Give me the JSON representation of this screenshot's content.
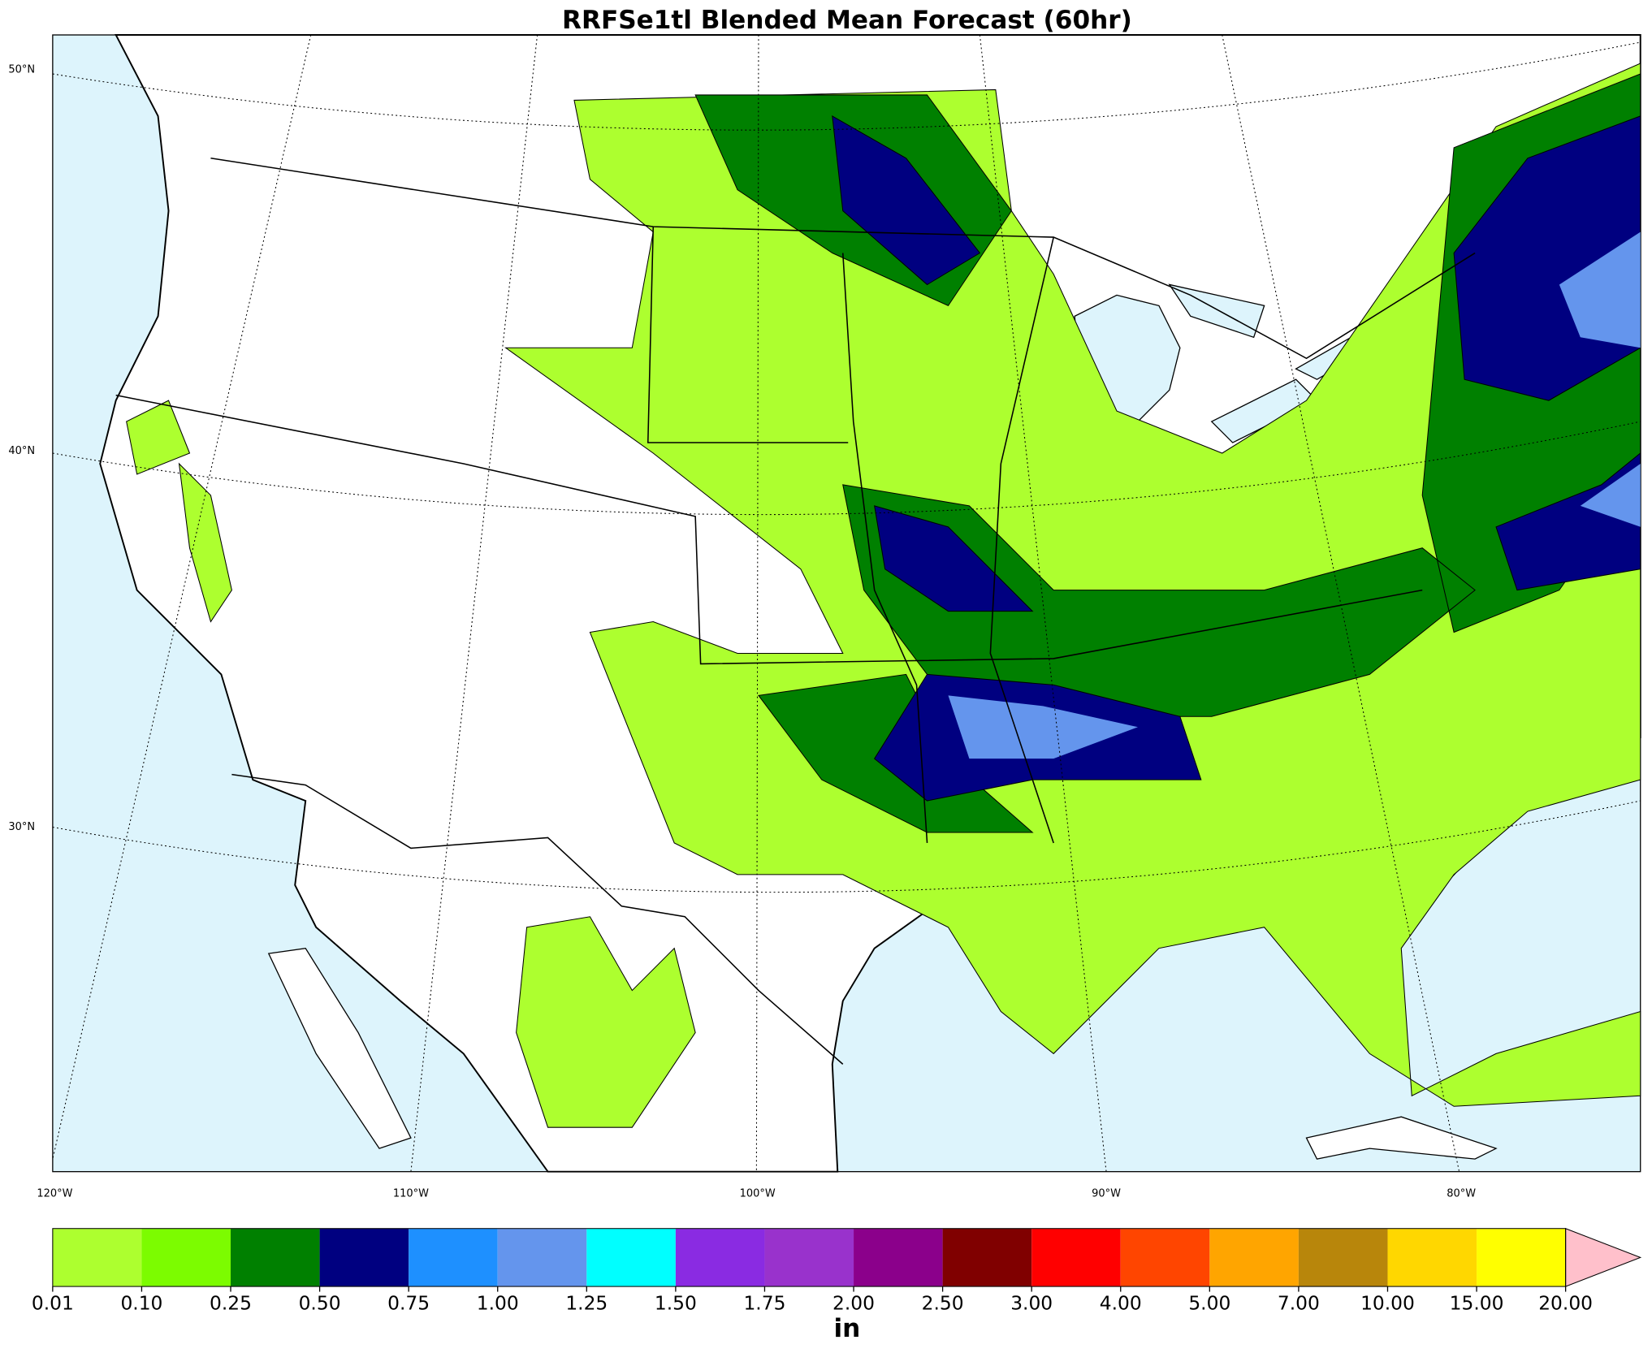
{
  "title": "RRFSe1tl Blended Mean Forecast (60hr)",
  "map": {
    "latitude_labels": [
      "50°N",
      "40°N",
      "30°N"
    ],
    "longitude_labels": [
      "120°W",
      "110°W",
      "100°W",
      "90°W",
      "80°W"
    ]
  },
  "colorbar": {
    "unit": "in",
    "levels": [
      {
        "value": 0.01,
        "label": "0.01"
      },
      {
        "value": 0.1,
        "label": "0.10"
      },
      {
        "value": 0.25,
        "label": "0.25"
      },
      {
        "value": 0.5,
        "label": "0.50"
      },
      {
        "value": 0.75,
        "label": "0.75"
      },
      {
        "value": 1,
        "label": "1.00"
      },
      {
        "value": 1.25,
        "label": "1.25"
      },
      {
        "value": 1.5,
        "label": "1.50"
      },
      {
        "value": 1.75,
        "label": "1.75"
      },
      {
        "value": 2,
        "label": "2.00"
      },
      {
        "value": 2.5,
        "label": "2.50"
      },
      {
        "value": 3,
        "label": "3.00"
      },
      {
        "value": 4,
        "label": "4.00"
      },
      {
        "value": 5,
        "label": "5.00"
      },
      {
        "value": 7,
        "label": "7.00"
      },
      {
        "value": 10,
        "label": "10.00"
      },
      {
        "value": 15,
        "label": "15.00"
      },
      {
        "value": 20,
        "label": "20.00"
      }
    ],
    "colors": [
      "#adff2f",
      "#7cfc00",
      "#008000",
      "#000080",
      "#1e90ff",
      "#6495ed",
      "#00ffff",
      "#8a2be2",
      "#9932cc",
      "#8b008b",
      "#800000",
      "#ff0000",
      "#ff4500",
      "#ffa500",
      "#b8860b",
      "#ffd700",
      "#ffff00"
    ],
    "extend_color": "#ffc0cb"
  }
}
